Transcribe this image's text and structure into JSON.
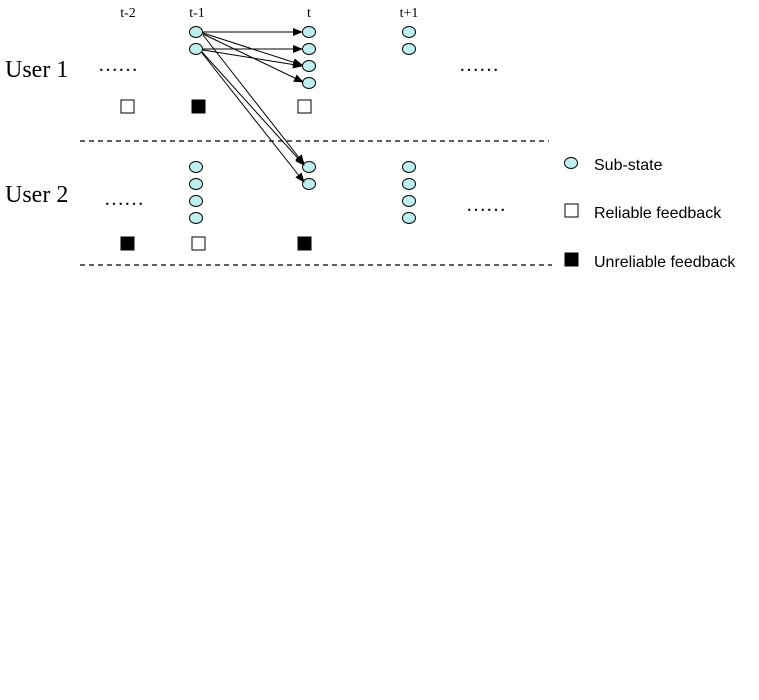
{
  "time_labels": {
    "t_minus_2": "t-2",
    "t_minus_1": "t-1",
    "t": "t",
    "t_plus_1": "t+1"
  },
  "rows": {
    "user1": {
      "label": "User 1",
      "ellipsis_left": "……",
      "ellipsis_right": "……"
    },
    "user2": {
      "label": "User 2",
      "ellipsis_left": "……",
      "ellipsis_right": "……"
    }
  },
  "legend": {
    "sub_state": "Sub-state",
    "reliable": "Reliable feedback",
    "unreliable": "Unreliable feedback"
  },
  "feedback": {
    "user1": [
      "reliable",
      "unreliable",
      "reliable"
    ],
    "user2": [
      "unreliable",
      "reliable",
      "unreliable"
    ]
  },
  "colors": {
    "sub_state_fill": "#bfeeee",
    "stroke": "#000000",
    "unreliable_fill": "#000000",
    "reliable_fill": "#ffffff"
  }
}
